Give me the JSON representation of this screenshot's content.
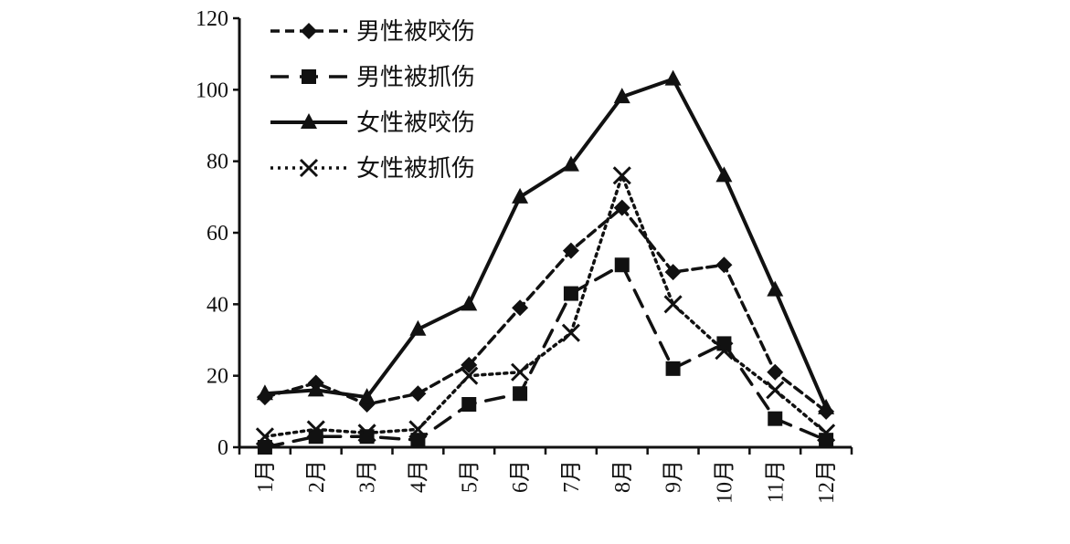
{
  "chart_data": {
    "type": "line",
    "title": "",
    "xlabel": "",
    "ylabel": "",
    "ylim": [
      0,
      120
    ],
    "yticks": [
      0,
      20,
      40,
      60,
      80,
      100,
      120
    ],
    "grid": false,
    "legend_position": "top-left",
    "categories": [
      "1月",
      "2月",
      "3月",
      "4月",
      "5月",
      "6月",
      "7月",
      "8月",
      "9月",
      "10月",
      "11月",
      "12月"
    ],
    "series": [
      {
        "name": "男性被咬伤",
        "style": "dashed-short",
        "marker": "diamond",
        "values": [
          14,
          18,
          12,
          15,
          23,
          39,
          55,
          67,
          49,
          51,
          21,
          10
        ]
      },
      {
        "name": "男性被抓伤",
        "style": "dashed-long",
        "marker": "square",
        "values": [
          0,
          3,
          3,
          2,
          12,
          15,
          43,
          51,
          22,
          29,
          8,
          2
        ]
      },
      {
        "name": "女性被咬伤",
        "style": "solid",
        "marker": "triangle",
        "values": [
          15,
          16,
          14,
          33,
          40,
          70,
          79,
          98,
          103,
          76,
          44,
          11
        ]
      },
      {
        "name": "女性被抓伤",
        "style": "dotted",
        "marker": "x",
        "values": [
          3,
          5,
          4,
          5,
          20,
          21,
          32,
          76,
          40,
          27,
          16,
          4
        ]
      }
    ]
  }
}
